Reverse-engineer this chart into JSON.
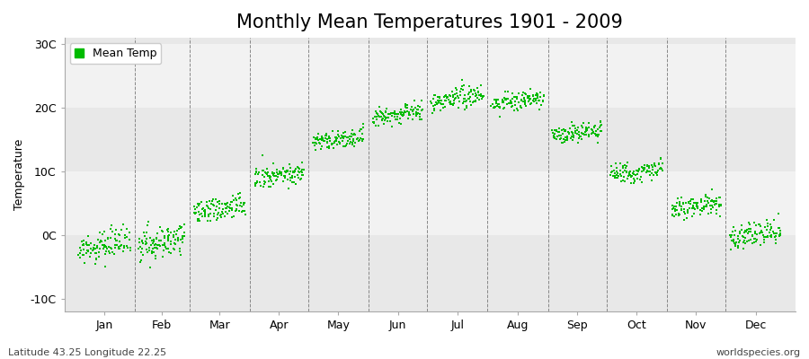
{
  "title": "Monthly Mean Temperatures 1901 - 2009",
  "ylabel": "Temperature",
  "xlabel_labels": [
    "Jan",
    "Feb",
    "Mar",
    "Apr",
    "May",
    "Jun",
    "Jul",
    "Aug",
    "Sep",
    "Oct",
    "Nov",
    "Dec"
  ],
  "ylabel_ticks": [
    -10,
    0,
    10,
    20,
    30
  ],
  "ylabel_tick_labels": [
    "-10C",
    "0C",
    "10C",
    "20C",
    "30C"
  ],
  "ylim": [
    -12,
    31
  ],
  "xlim": [
    -5,
    370
  ],
  "bottom_left_text": "Latitude 43.25 Longitude 22.25",
  "bottom_right_text": "worldspecies.org",
  "legend_label": "Mean Temp",
  "marker_color": "#00bb00",
  "bg_dark": "#e8e8e8",
  "bg_light": "#f2f2f2",
  "mean_temps": [
    -2.5,
    -2.0,
    3.5,
    9.0,
    14.5,
    18.5,
    21.0,
    20.5,
    15.5,
    9.5,
    4.0,
    -0.5
  ],
  "temp_trend": [
    0.015,
    0.015,
    0.012,
    0.01,
    0.01,
    0.01,
    0.01,
    0.01,
    0.01,
    0.01,
    0.01,
    0.012
  ],
  "temp_spread": [
    2.8,
    3.2,
    2.5,
    2.2,
    2.0,
    2.0,
    2.0,
    2.0,
    2.0,
    2.0,
    2.2,
    2.5
  ],
  "n_years": 109,
  "title_fontsize": 15,
  "axis_fontsize": 9,
  "tick_fontsize": 9,
  "annotation_fontsize": 8,
  "marker_size": 4
}
